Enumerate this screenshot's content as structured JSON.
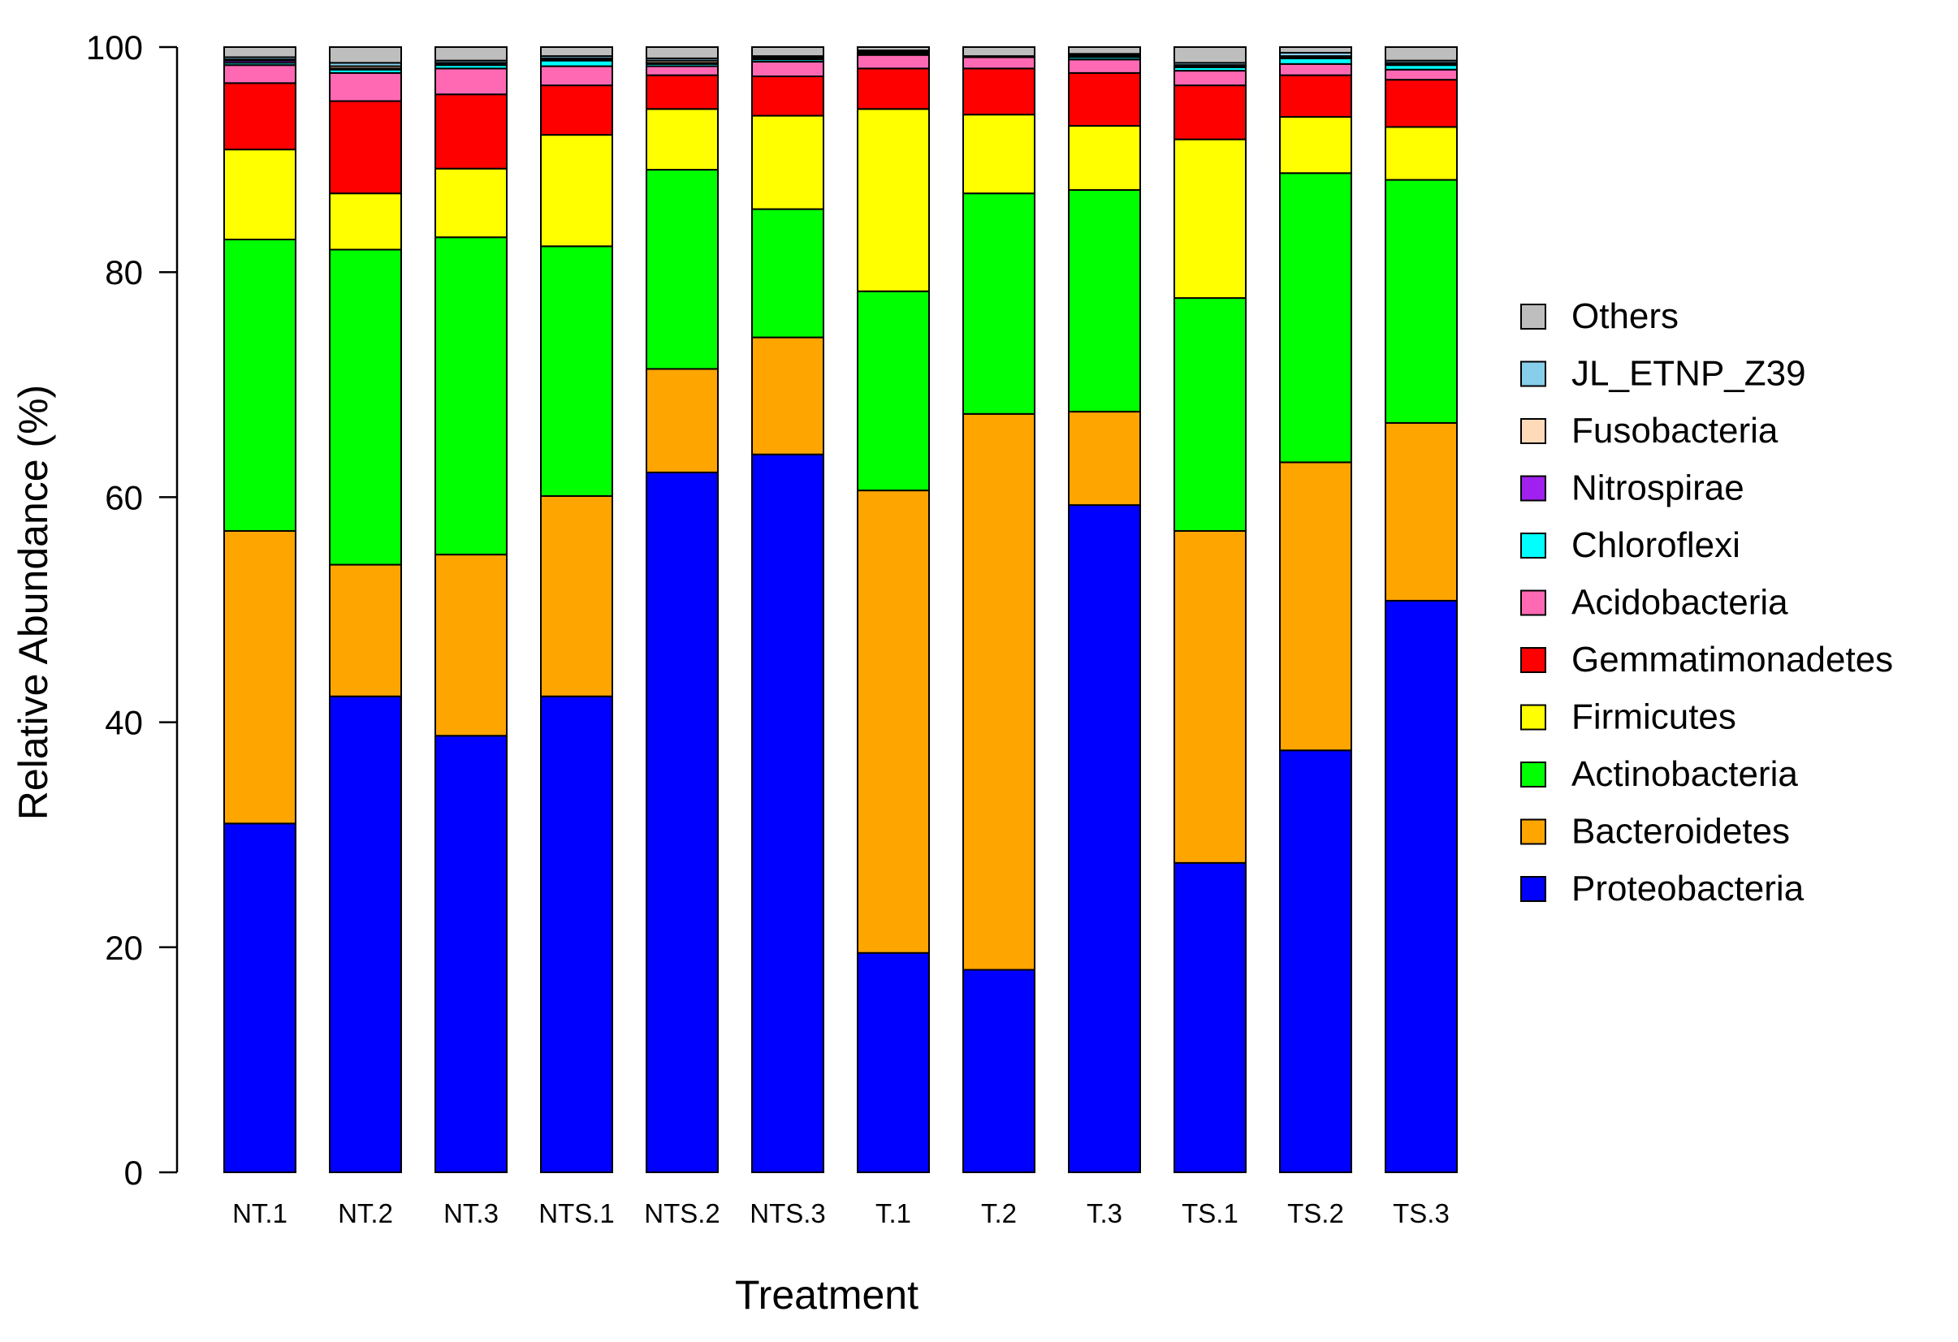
{
  "chart_data": {
    "type": "bar",
    "stacked": true,
    "title": "",
    "xlabel": "Treatment",
    "ylabel": "Relative Abundance (%)",
    "ylim": [
      0,
      100
    ],
    "yticks": [
      0,
      20,
      40,
      60,
      80,
      100
    ],
    "legend_position": "right",
    "categories": [
      "NT.1",
      "NT.2",
      "NT.3",
      "NTS.1",
      "NTS.2",
      "NTS.3",
      "T.1",
      "T.2",
      "T.3",
      "TS.1",
      "TS.2",
      "TS.3"
    ],
    "series": [
      {
        "name": "Proteobacteria",
        "color": "#0000FF",
        "values": [
          31.0,
          42.3,
          38.8,
          42.3,
          62.2,
          63.8,
          19.5,
          18.0,
          59.3,
          27.5,
          37.5,
          50.8
        ]
      },
      {
        "name": "Bacteroidetes",
        "color": "#FFA500",
        "values": [
          26.0,
          11.7,
          16.1,
          17.8,
          9.2,
          10.4,
          41.1,
          49.4,
          8.3,
          29.5,
          25.6,
          15.8
        ]
      },
      {
        "name": "Actinobacteria",
        "color": "#00FF00",
        "values": [
          25.9,
          28.0,
          28.2,
          22.2,
          17.7,
          11.4,
          17.7,
          19.6,
          19.7,
          20.7,
          25.7,
          21.6
        ]
      },
      {
        "name": "Firmicutes",
        "color": "#FFFF00",
        "values": [
          8.0,
          5.0,
          6.1,
          9.9,
          5.4,
          8.3,
          16.2,
          7.0,
          5.7,
          14.1,
          5.0,
          4.7
        ]
      },
      {
        "name": "Gemmatimonadetes",
        "color": "#FF0000",
        "values": [
          5.9,
          8.2,
          6.6,
          4.4,
          3.0,
          3.5,
          3.6,
          4.1,
          4.7,
          4.8,
          3.7,
          4.2
        ]
      },
      {
        "name": "Acidobacteria",
        "color": "#FF69B4",
        "values": [
          1.6,
          2.5,
          2.3,
          1.7,
          0.8,
          1.3,
          1.2,
          1.0,
          1.2,
          1.3,
          1.0,
          0.9
        ]
      },
      {
        "name": "Chloroflexi",
        "color": "#00FFFF",
        "values": [
          0.2,
          0.3,
          0.3,
          0.5,
          0.2,
          0.2,
          0.1,
          0.1,
          0.2,
          0.3,
          0.5,
          0.4
        ]
      },
      {
        "name": "Nitrospirae",
        "color": "#A020F0",
        "values": [
          0.2,
          0.1,
          0.1,
          0.1,
          0.1,
          0.1,
          0.1,
          0.0,
          0.1,
          0.1,
          0.1,
          0.1
        ]
      },
      {
        "name": "Fusobacteria",
        "color": "#FFDAB9",
        "values": [
          0.1,
          0.2,
          0.1,
          0.1,
          0.2,
          0.1,
          0.1,
          0.0,
          0.1,
          0.1,
          0.1,
          0.1
        ]
      },
      {
        "name": "JL_ETNP_Z39",
        "color": "#87CEEB",
        "values": [
          0.2,
          0.3,
          0.2,
          0.2,
          0.2,
          0.1,
          0.1,
          0.0,
          0.1,
          0.2,
          0.3,
          0.2
        ]
      },
      {
        "name": "Others",
        "color": "#BEBEBE",
        "values": [
          0.9,
          1.4,
          1.2,
          0.8,
          1.0,
          0.8,
          0.3,
          0.8,
          0.6,
          1.4,
          0.5,
          1.2
        ]
      }
    ]
  }
}
